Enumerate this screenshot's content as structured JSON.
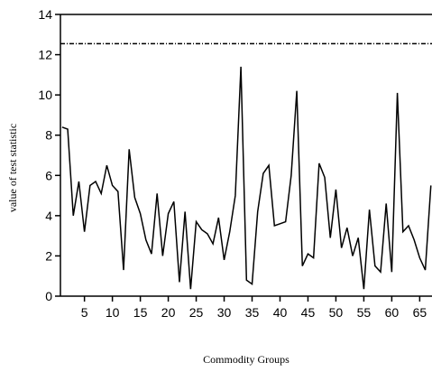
{
  "chart_data": {
    "type": "line",
    "x_label": "Commodity Groups",
    "y_label": "value of test statistic",
    "x": [
      1,
      2,
      3,
      4,
      5,
      6,
      7,
      8,
      9,
      10,
      11,
      12,
      13,
      14,
      15,
      16,
      17,
      18,
      19,
      20,
      21,
      22,
      23,
      24,
      25,
      26,
      27,
      28,
      29,
      30,
      31,
      32,
      33,
      34,
      35,
      36,
      37,
      38,
      39,
      40,
      41,
      42,
      43,
      44,
      45,
      46,
      47,
      48,
      49,
      50,
      51,
      52,
      53,
      54,
      55,
      56,
      57,
      58,
      59,
      60,
      61,
      62,
      63,
      64,
      65,
      66,
      67
    ],
    "series": [
      {
        "color": "#000000",
        "values": [
          8.4,
          8.3,
          4.0,
          5.7,
          3.2,
          5.5,
          5.7,
          5.1,
          6.5,
          5.5,
          5.2,
          1.3,
          7.3,
          4.9,
          4.1,
          2.8,
          2.1,
          5.1,
          2.0,
          4.1,
          4.7,
          0.7,
          4.2,
          0.35,
          3.7,
          3.3,
          3.1,
          2.6,
          3.9,
          1.8,
          3.2,
          5.0,
          11.4,
          0.8,
          0.6,
          4.2,
          6.1,
          6.5,
          3.5,
          3.6,
          3.7,
          6.0,
          10.2,
          1.5,
          2.1,
          1.9,
          6.6,
          5.9,
          2.9,
          5.3,
          2.4,
          3.4,
          2.0,
          2.9,
          0.35,
          4.3,
          1.5,
          1.2,
          4.6,
          1.2,
          10.1,
          3.2,
          3.5,
          2.8,
          1.9,
          1.3,
          5.5
        ]
      }
    ],
    "reference_line": 12.55,
    "xlim": [
      0.7,
      67.2
    ],
    "ylim": [
      0,
      14
    ],
    "xticks": [
      5,
      10,
      15,
      20,
      25,
      30,
      35,
      40,
      45,
      50,
      55,
      60,
      65
    ],
    "yticks": [
      0,
      2,
      4,
      6,
      8,
      10,
      12,
      14
    ]
  }
}
